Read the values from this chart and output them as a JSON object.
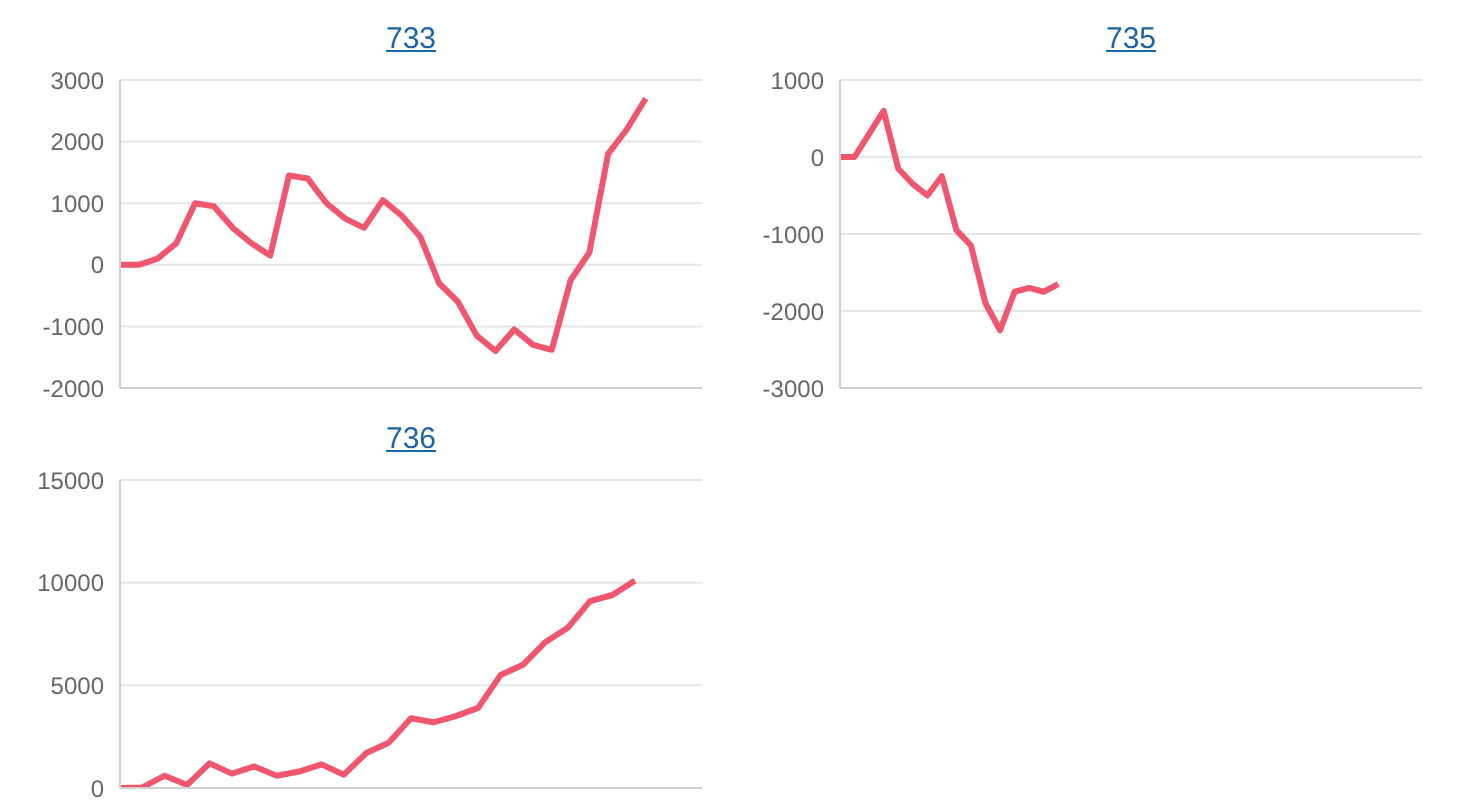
{
  "chart_data": [
    {
      "type": "line",
      "title": "733",
      "categories": [
        null,
        null,
        null,
        null,
        null,
        null,
        null,
        null,
        null,
        null,
        null,
        null,
        null,
        null,
        null,
        null,
        null,
        null,
        null,
        null,
        null,
        null,
        null,
        null,
        null,
        null,
        null,
        null,
        null,
        null,
        null,
        null
      ],
      "series": [
        {
          "color": "#f0566e",
          "values": [
            0,
            0,
            100,
            350,
            1000,
            950,
            600,
            350,
            150,
            1450,
            1400,
            1000,
            750,
            600,
            1050,
            800,
            450,
            -300,
            -600,
            -1150,
            -1400,
            -1050,
            -1300,
            -1380,
            -250,
            200,
            1800,
            2200,
            2700,
            null,
            null,
            null
          ]
        }
      ],
      "ylim": [
        -2000,
        3000
      ],
      "yticks": [
        -2000,
        -1000,
        0,
        1000,
        2000,
        3000
      ],
      "grid": "y",
      "tick_labels": "y",
      "marker": "none",
      "line_style": "solid"
    },
    {
      "type": "line",
      "title": "735",
      "categories": [
        null,
        null,
        null,
        null,
        null,
        null,
        null,
        null,
        null,
        null,
        null,
        null,
        null,
        null,
        null,
        null,
        null,
        null,
        null,
        null,
        null,
        null,
        null,
        null,
        null,
        null,
        null,
        null,
        null,
        null,
        null,
        null,
        null,
        null,
        null,
        null,
        null,
        null,
        null,
        null,
        null
      ],
      "series": [
        {
          "color": "#f0566e",
          "values": [
            0,
            0,
            300,
            600,
            -150,
            -350,
            -500,
            -250,
            -950,
            -1150,
            -1900,
            -2250,
            -1750,
            -1700,
            -1750,
            -1650,
            null,
            null,
            null,
            null,
            null,
            null,
            null,
            null,
            null,
            null,
            null,
            null,
            null,
            null,
            null,
            null,
            null,
            null,
            null,
            null,
            null,
            null,
            null,
            null,
            null
          ]
        }
      ],
      "ylim": [
        -3000,
        1000
      ],
      "yticks": [
        -3000,
        -2000,
        -1000,
        0,
        1000
      ],
      "grid": "y",
      "tick_labels": "y",
      "marker": "none",
      "line_style": "solid"
    },
    {
      "type": "line",
      "title": "736",
      "categories": [
        null,
        null,
        null,
        null,
        null,
        null,
        null,
        null,
        null,
        null,
        null,
        null,
        null,
        null,
        null,
        null,
        null,
        null,
        null,
        null,
        null,
        null,
        null,
        null,
        null,
        null,
        null
      ],
      "series": [
        {
          "color": "#f0566e",
          "values": [
            0,
            30,
            600,
            150,
            1200,
            700,
            1050,
            600,
            800,
            1150,
            650,
            1700,
            2200,
            3400,
            3200,
            3500,
            3900,
            5500,
            6000,
            7100,
            7800,
            9100,
            9400,
            10100,
            null,
            null,
            null
          ]
        }
      ],
      "ylim": [
        0,
        15000
      ],
      "yticks": [
        0,
        5000,
        10000,
        15000
      ],
      "grid": "y",
      "tick_labels": "y",
      "marker": "none",
      "line_style": "solid"
    }
  ]
}
